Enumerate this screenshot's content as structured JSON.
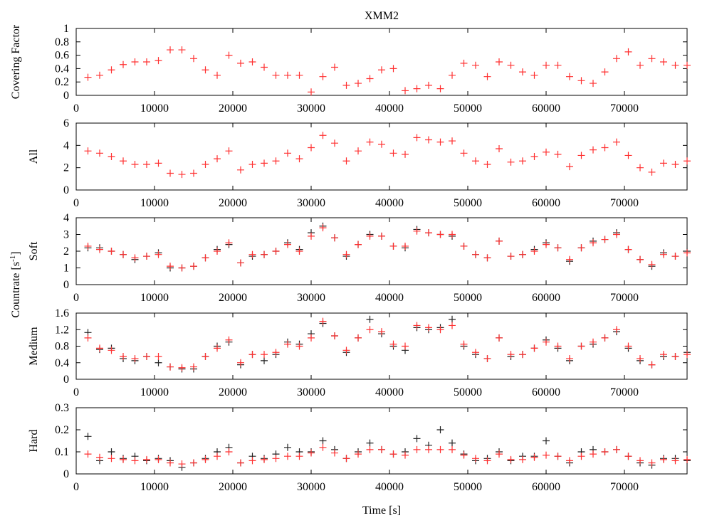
{
  "title": "XMM2",
  "xlabel": "Time [s]",
  "shared_ylabel": {
    "text": "Countrate [s",
    "sup": "-1",
    "end": "]"
  },
  "chart_data": [
    {
      "type": "scatter",
      "ylabel": "Covering Factor",
      "x": [
        1500,
        3000,
        4500,
        6000,
        7500,
        9000,
        10500,
        12000,
        13500,
        15000,
        16500,
        18000,
        19500,
        21000,
        22500,
        24000,
        25500,
        27000,
        28500,
        30000,
        31500,
        33000,
        34500,
        36000,
        37500,
        39000,
        40500,
        42000,
        43500,
        45000,
        46500,
        48000,
        49500,
        51000,
        52500,
        54000,
        55500,
        57000,
        58500,
        60000,
        61500,
        63000,
        64500,
        66000,
        67500,
        69000,
        70500,
        72000,
        73500,
        75000,
        76500,
        78000
      ],
      "xlim": [
        0,
        78000
      ],
      "xticks": [
        0,
        10000,
        20000,
        30000,
        40000,
        50000,
        60000,
        70000
      ],
      "ylim": [
        0,
        1
      ],
      "yticks": [
        0,
        0.2,
        0.4,
        0.6,
        0.8,
        1
      ],
      "series": [
        {
          "color": "#ff3030",
          "values": [
            0.27,
            0.3,
            0.38,
            0.46,
            0.5,
            0.5,
            0.52,
            0.68,
            0.68,
            0.55,
            0.38,
            0.3,
            0.6,
            0.48,
            0.5,
            0.42,
            0.3,
            0.3,
            0.3,
            0.05,
            0.28,
            0.42,
            0.15,
            0.18,
            0.25,
            0.38,
            0.4,
            0.07,
            0.1,
            0.15,
            0.1,
            0.3,
            0.48,
            0.45,
            0.28,
            0.5,
            0.45,
            0.35,
            0.3,
            0.45,
            0.45,
            0.28,
            0.22,
            0.18,
            0.35,
            0.55,
            0.65,
            0.45,
            0.55,
            0.5,
            0.45,
            0.45
          ]
        }
      ]
    },
    {
      "type": "scatter",
      "ylabel": "All",
      "x": [
        1500,
        3000,
        4500,
        6000,
        7500,
        9000,
        10500,
        12000,
        13500,
        15000,
        16500,
        18000,
        19500,
        21000,
        22500,
        24000,
        25500,
        27000,
        28500,
        30000,
        31500,
        33000,
        34500,
        36000,
        37500,
        39000,
        40500,
        42000,
        43500,
        45000,
        46500,
        48000,
        49500,
        51000,
        52500,
        54000,
        55500,
        57000,
        58500,
        60000,
        61500,
        63000,
        64500,
        66000,
        67500,
        69000,
        70500,
        72000,
        73500,
        75000,
        76500,
        78000
      ],
      "xlim": [
        0,
        78000
      ],
      "xticks": [
        0,
        10000,
        20000,
        30000,
        40000,
        50000,
        60000,
        70000
      ],
      "ylim": [
        0,
        6
      ],
      "yticks": [
        0,
        2,
        4,
        6
      ],
      "series": [
        {
          "color": "#ff3030",
          "values": [
            3.5,
            3.3,
            3.0,
            2.6,
            2.3,
            2.3,
            2.4,
            1.5,
            1.4,
            1.5,
            2.3,
            2.8,
            3.5,
            1.8,
            2.3,
            2.4,
            2.6,
            3.3,
            2.8,
            3.8,
            4.9,
            4.2,
            2.6,
            3.5,
            4.3,
            4.1,
            3.3,
            3.2,
            4.7,
            4.5,
            4.3,
            4.4,
            3.3,
            2.6,
            2.3,
            3.7,
            2.5,
            2.6,
            3.0,
            3.4,
            3.2,
            2.1,
            3.1,
            3.6,
            3.8,
            4.3,
            3.1,
            2.0,
            1.6,
            2.4,
            2.3,
            2.6
          ]
        }
      ]
    },
    {
      "type": "scatter",
      "ylabel": "Soft",
      "x": [
        1500,
        3000,
        4500,
        6000,
        7500,
        9000,
        10500,
        12000,
        13500,
        15000,
        16500,
        18000,
        19500,
        21000,
        22500,
        24000,
        25500,
        27000,
        28500,
        30000,
        31500,
        33000,
        34500,
        36000,
        37500,
        39000,
        40500,
        42000,
        43500,
        45000,
        46500,
        48000,
        49500,
        51000,
        52500,
        54000,
        55500,
        57000,
        58500,
        60000,
        61500,
        63000,
        64500,
        66000,
        67500,
        69000,
        70500,
        72000,
        73500,
        75000,
        76500,
        78000
      ],
      "xlim": [
        0,
        78000
      ],
      "xticks": [
        0,
        10000,
        20000,
        30000,
        40000,
        50000,
        60000,
        70000
      ],
      "ylim": [
        0,
        4
      ],
      "yticks": [
        0,
        1,
        2,
        3,
        4
      ],
      "series": [
        {
          "color": "#222222",
          "values": [
            2.2,
            2.2,
            2.0,
            1.8,
            1.5,
            1.7,
            1.9,
            1.0,
            1.0,
            1.1,
            1.6,
            2.1,
            2.4,
            1.3,
            1.7,
            1.8,
            2.0,
            2.5,
            2.1,
            3.1,
            3.5,
            2.8,
            1.7,
            2.4,
            3.0,
            2.9,
            2.3,
            2.2,
            3.3,
            3.1,
            3.0,
            2.9,
            2.3,
            1.8,
            1.6,
            2.6,
            1.7,
            1.8,
            2.1,
            2.5,
            2.2,
            1.4,
            2.2,
            2.6,
            2.7,
            3.1,
            2.1,
            1.5,
            1.1,
            1.9,
            1.7,
            2.0
          ]
        },
        {
          "color": "#ff3030",
          "values": [
            2.3,
            2.1,
            2.0,
            1.8,
            1.6,
            1.7,
            1.8,
            1.1,
            1.0,
            1.1,
            1.6,
            2.0,
            2.5,
            1.3,
            1.8,
            1.8,
            2.0,
            2.4,
            2.0,
            2.9,
            3.4,
            2.8,
            1.8,
            2.4,
            2.9,
            2.9,
            2.3,
            2.3,
            3.2,
            3.1,
            3.0,
            3.0,
            2.3,
            1.8,
            1.6,
            2.6,
            1.7,
            1.8,
            2.0,
            2.4,
            2.2,
            1.5,
            2.2,
            2.5,
            2.7,
            3.0,
            2.1,
            1.5,
            1.2,
            1.8,
            1.7,
            1.9
          ]
        }
      ]
    },
    {
      "type": "scatter",
      "ylabel": "Medium",
      "x": [
        1500,
        3000,
        4500,
        6000,
        7500,
        9000,
        10500,
        12000,
        13500,
        15000,
        16500,
        18000,
        19500,
        21000,
        22500,
        24000,
        25500,
        27000,
        28500,
        30000,
        31500,
        33000,
        34500,
        36000,
        37500,
        39000,
        40500,
        42000,
        43500,
        45000,
        46500,
        48000,
        49500,
        51000,
        52500,
        54000,
        55500,
        57000,
        58500,
        60000,
        61500,
        63000,
        64500,
        66000,
        67500,
        69000,
        70500,
        72000,
        73500,
        75000,
        76500,
        78000
      ],
      "xlim": [
        0,
        78000
      ],
      "xticks": [
        0,
        10000,
        20000,
        30000,
        40000,
        50000,
        60000,
        70000
      ],
      "ylim": [
        0,
        1.6
      ],
      "yticks": [
        0,
        0.4,
        0.8,
        1.2,
        1.6
      ],
      "series": [
        {
          "color": "#222222",
          "values": [
            1.13,
            0.72,
            0.75,
            0.5,
            0.45,
            0.55,
            0.4,
            0.3,
            0.25,
            0.25,
            0.55,
            0.8,
            0.9,
            0.35,
            0.6,
            0.45,
            0.6,
            0.9,
            0.85,
            1.1,
            1.35,
            1.05,
            0.65,
            1.0,
            1.45,
            1.1,
            0.8,
            0.7,
            1.25,
            1.2,
            1.25,
            1.45,
            0.8,
            0.6,
            0.5,
            1.0,
            0.55,
            0.6,
            0.75,
            0.95,
            0.75,
            0.45,
            0.8,
            0.85,
            1.0,
            1.15,
            0.75,
            0.45,
            0.35,
            0.55,
            0.55,
            0.65
          ]
        },
        {
          "color": "#ff3030",
          "values": [
            1.0,
            0.75,
            0.7,
            0.55,
            0.5,
            0.55,
            0.55,
            0.3,
            0.28,
            0.3,
            0.55,
            0.75,
            0.95,
            0.4,
            0.6,
            0.6,
            0.65,
            0.85,
            0.8,
            1.0,
            1.4,
            1.05,
            0.7,
            1.0,
            1.2,
            1.15,
            0.85,
            0.8,
            1.3,
            1.25,
            1.2,
            1.3,
            0.85,
            0.65,
            0.5,
            1.0,
            0.6,
            0.6,
            0.75,
            0.9,
            0.8,
            0.5,
            0.8,
            0.9,
            1.0,
            1.2,
            0.8,
            0.5,
            0.35,
            0.6,
            0.55,
            0.6
          ]
        }
      ]
    },
    {
      "type": "scatter",
      "ylabel": "Hard",
      "x": [
        1500,
        3000,
        4500,
        6000,
        7500,
        9000,
        10500,
        12000,
        13500,
        15000,
        16500,
        18000,
        19500,
        21000,
        22500,
        24000,
        25500,
        27000,
        28500,
        30000,
        31500,
        33000,
        34500,
        36000,
        37500,
        39000,
        40500,
        42000,
        43500,
        45000,
        46500,
        48000,
        49500,
        51000,
        52500,
        54000,
        55500,
        57000,
        58500,
        60000,
        61500,
        63000,
        64500,
        66000,
        67500,
        69000,
        70500,
        72000,
        73500,
        75000,
        76500,
        78000
      ],
      "xlim": [
        0,
        78000
      ],
      "xticks": [
        0,
        10000,
        20000,
        30000,
        40000,
        50000,
        60000,
        70000
      ],
      "ylim": [
        0,
        0.3
      ],
      "yticks": [
        0,
        0.1,
        0.2,
        0.3
      ],
      "series": [
        {
          "color": "#222222",
          "values": [
            0.17,
            0.06,
            0.1,
            0.07,
            0.08,
            0.06,
            0.07,
            0.06,
            0.03,
            0.05,
            0.07,
            0.1,
            0.12,
            0.05,
            0.08,
            0.07,
            0.09,
            0.12,
            0.1,
            0.1,
            0.15,
            0.11,
            0.07,
            0.1,
            0.14,
            0.11,
            0.09,
            0.1,
            0.16,
            0.13,
            0.2,
            0.14,
            0.09,
            0.06,
            0.07,
            0.1,
            0.06,
            0.08,
            0.08,
            0.15,
            0.08,
            0.05,
            0.1,
            0.11,
            0.1,
            0.11,
            0.08,
            0.05,
            0.04,
            0.07,
            0.07,
            0.06
          ]
        },
        {
          "color": "#ff3030",
          "values": [
            0.09,
            0.075,
            0.07,
            0.065,
            0.06,
            0.065,
            0.065,
            0.05,
            0.045,
            0.05,
            0.065,
            0.08,
            0.1,
            0.05,
            0.06,
            0.065,
            0.07,
            0.08,
            0.08,
            0.095,
            0.12,
            0.095,
            0.07,
            0.09,
            0.11,
            0.11,
            0.09,
            0.085,
            0.11,
            0.11,
            0.11,
            0.11,
            0.085,
            0.07,
            0.06,
            0.09,
            0.065,
            0.065,
            0.075,
            0.085,
            0.08,
            0.06,
            0.08,
            0.09,
            0.1,
            0.11,
            0.08,
            0.06,
            0.05,
            0.065,
            0.06,
            0.065
          ]
        }
      ]
    }
  ]
}
